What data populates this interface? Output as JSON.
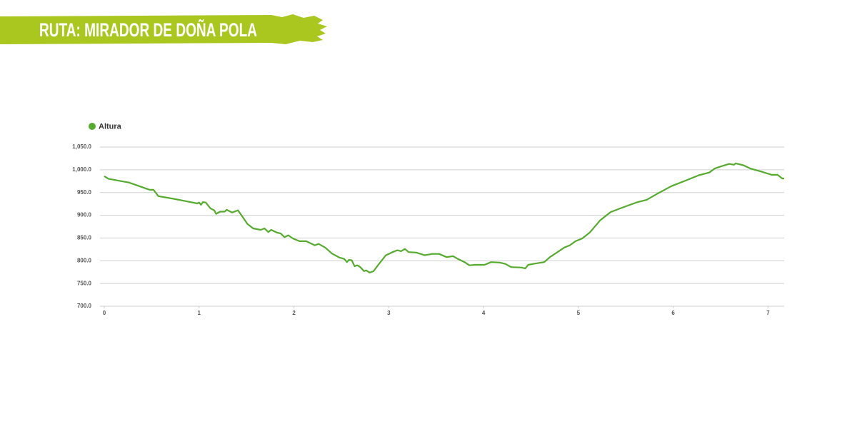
{
  "title": "RUTA: MIRADOR DE DOÑA POLA",
  "chart_data": {
    "type": "line",
    "series": [
      {
        "name": "Altura",
        "color": "#56ab2f",
        "x": [
          0,
          0.045,
          0.105,
          0.18,
          0.26,
          0.33,
          0.41,
          0.48,
          0.52,
          0.57,
          0.71,
          0.86,
          0.98,
          1.0,
          1.02,
          1.04,
          1.07,
          1.12,
          1.16,
          1.18,
          1.22,
          1.27,
          1.29,
          1.35,
          1.41,
          1.46,
          1.51,
          1.57,
          1.65,
          1.69,
          1.73,
          1.76,
          1.82,
          1.86,
          1.9,
          1.94,
          1.99,
          2.06,
          2.13,
          2.18,
          2.22,
          2.26,
          2.33,
          2.4,
          2.48,
          2.53,
          2.56,
          2.58,
          2.61,
          2.64,
          2.67,
          2.7,
          2.74,
          2.76,
          2.8,
          2.84,
          2.89,
          2.97,
          3.04,
          3.09,
          3.13,
          3.17,
          3.21,
          3.29,
          3.38,
          3.46,
          3.53,
          3.61,
          3.68,
          3.72,
          3.8,
          3.85,
          3.91,
          4.01,
          4.08,
          4.17,
          4.23,
          4.29,
          4.4,
          4.44,
          4.47,
          4.55,
          4.64,
          4.7,
          4.78,
          4.85,
          4.91,
          4.97,
          5.04,
          5.12,
          5.23,
          5.34,
          5.44,
          5.53,
          5.61,
          5.72,
          5.83,
          5.98,
          6.14,
          6.27,
          6.38,
          6.44,
          6.51,
          6.59,
          6.64,
          6.66,
          6.74,
          6.81,
          6.93,
          7.04,
          7.1,
          7.15,
          7.17
        ],
        "values": [
          986,
          980,
          978,
          975,
          972,
          967,
          961,
          956,
          956,
          942,
          937,
          931,
          926,
          928,
          923,
          929,
          928,
          915,
          911,
          903,
          908,
          908,
          912,
          906,
          911,
          896,
          881,
          871,
          868,
          871,
          863,
          868,
          862,
          860,
          852,
          856,
          849,
          843,
          843,
          838,
          834,
          837,
          829,
          816,
          807,
          804,
          797,
          802,
          801,
          788,
          790,
          786,
          777,
          779,
          774,
          777,
          791,
          812,
          819,
          823,
          821,
          826,
          819,
          818,
          812,
          815,
          815,
          808,
          810,
          805,
          797,
          790,
          791,
          791,
          797,
          796,
          793,
          786,
          785,
          783,
          791,
          794,
          797,
          808,
          819,
          829,
          834,
          843,
          849,
          862,
          889,
          907,
          915,
          922,
          928,
          934,
          947,
          964,
          977,
          988,
          994,
          1003,
          1008,
          1013,
          1011,
          1014,
          1010,
          1003,
          996,
          989,
          989,
          981,
          981
        ]
      }
    ],
    "xlim": [
      0,
      7.17
    ],
    "xticks": [
      0,
      1,
      2,
      3,
      4,
      5,
      6,
      7
    ],
    "ylim": [
      700,
      1050
    ],
    "yticks": [
      {
        "value": 700,
        "label": "700.0"
      },
      {
        "value": 750,
        "label": "750.0"
      },
      {
        "value": 800,
        "label": "800.0"
      },
      {
        "value": 850,
        "label": "850.0"
      },
      {
        "value": 900,
        "label": "900.0"
      },
      {
        "value": 950,
        "label": "950.0"
      },
      {
        "value": 1000,
        "label": "1,000.0"
      },
      {
        "value": 1050,
        "label": "1,050.0"
      }
    ],
    "grid": true
  }
}
